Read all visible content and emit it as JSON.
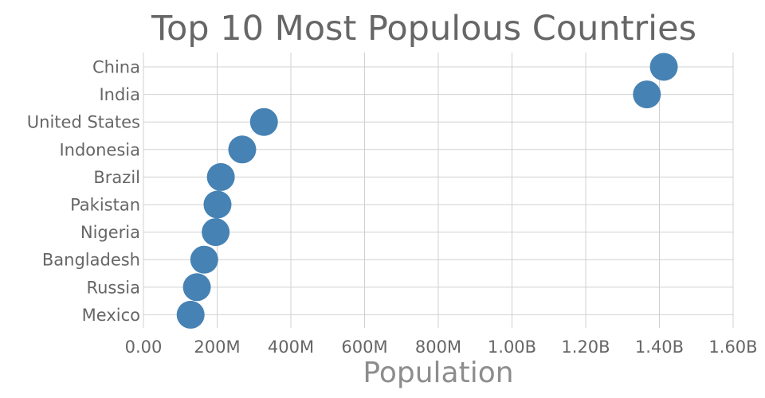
{
  "chart_data": {
    "type": "scatter",
    "title": "Top 10 Most Populous Countries",
    "xlabel": "Population",
    "ylabel": "",
    "xlim": [
      0,
      1600000000
    ],
    "x_ticks": [
      {
        "value": 0,
        "label": "0.00"
      },
      {
        "value": 200000000,
        "label": "200M"
      },
      {
        "value": 400000000,
        "label": "400M"
      },
      {
        "value": 600000000,
        "label": "600M"
      },
      {
        "value": 800000000,
        "label": "800M"
      },
      {
        "value": 1000000000,
        "label": "1.00B"
      },
      {
        "value": 1200000000,
        "label": "1.20B"
      },
      {
        "value": 1400000000,
        "label": "1.40B"
      },
      {
        "value": 1600000000,
        "label": "1.60B"
      }
    ],
    "categories": [
      "China",
      "India",
      "United States",
      "Indonesia",
      "Brazil",
      "Pakistan",
      "Nigeria",
      "Bangladesh",
      "Russia",
      "Mexico"
    ],
    "values": [
      1412000000,
      1366000000,
      327000000,
      268000000,
      210000000,
      201000000,
      196000000,
      165000000,
      145000000,
      128000000
    ],
    "grid": true,
    "marker_color": "#4682b4"
  }
}
